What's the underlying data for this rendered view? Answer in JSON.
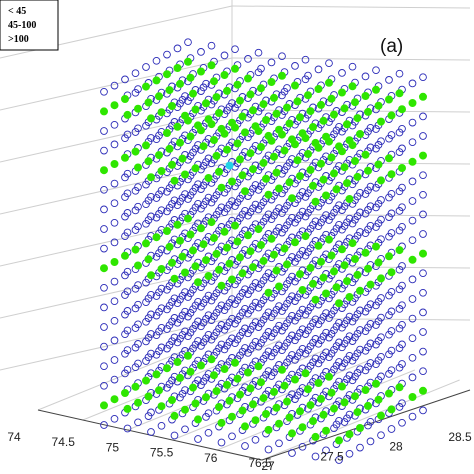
{
  "chart_data": {
    "type": "scatter",
    "dimensions": 3,
    "panel_label": "(a)",
    "legend": {
      "placement": "top-left",
      "entries": [
        "< 45",
        "45-100",
        ">100"
      ]
    },
    "grid": true,
    "x_axis": {
      "ticks": [
        "74",
        "74.5",
        "75",
        "75.5",
        "76",
        "76.5"
      ],
      "range": [
        74,
        76.5
      ]
    },
    "y_axis": {
      "ticks": [
        "27",
        "27.5",
        "28",
        "28.5"
      ],
      "range": [
        27,
        28.6
      ]
    },
    "colors": {
      "below_45": "#2b2bb8",
      "mid_45_100": "#22d3e6",
      "above_100": "#2fe600"
    },
    "series": [
      {
        "name": "< 45",
        "marker": "open-circle",
        "color": "#2b2bb8",
        "description_layers": "uniform lattice filling the whole volume"
      },
      {
        "name": "45-100",
        "marker": "filled-circle",
        "color": "#22d3e6",
        "layers_fraction": [
          0.76
        ]
      },
      {
        "name": ">100",
        "marker": "filled-circle",
        "color": "#2fe600",
        "layers_fraction": [
          0.06,
          0.48,
          0.77,
          0.95
        ]
      }
    ]
  },
  "legend_lines": [
    "< 45",
    "45-100",
    ">100"
  ],
  "panel_label": "(a)"
}
